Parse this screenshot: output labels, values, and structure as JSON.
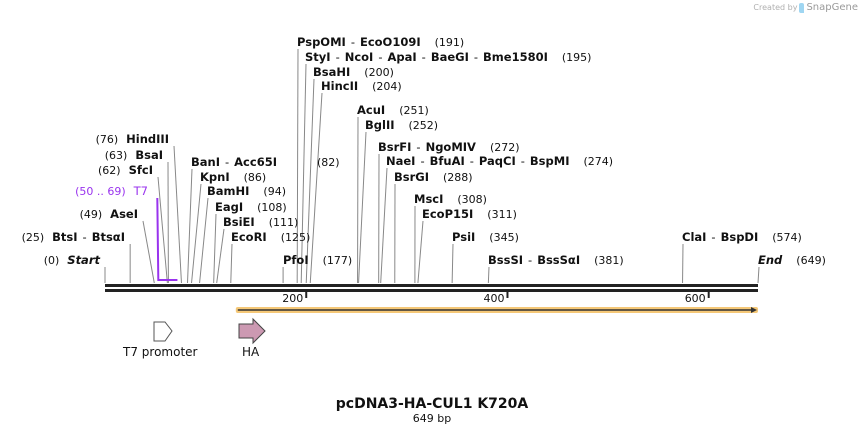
{
  "credit": {
    "prefix": "Created by",
    "brand": "SnapGene"
  },
  "sequence": {
    "name": "pcDNA3-HA-CUL1 K720A",
    "length_label": "649 bp",
    "length": 649
  },
  "ticks": [
    {
      "bp": 200,
      "label": "200"
    },
    {
      "bp": 400,
      "label": "400"
    },
    {
      "bp": 600,
      "label": "600"
    }
  ],
  "sites": [
    {
      "names": [
        "Start"
      ],
      "pos": "(0)",
      "bp": 0,
      "italic": true
    },
    {
      "names": [
        "BtsI",
        "BtsαI"
      ],
      "pos": "(25)",
      "bp": 25
    },
    {
      "names": [
        "AseI"
      ],
      "pos": "(49)",
      "bp": 49
    },
    {
      "names": [
        "SfcI"
      ],
      "pos": "(62)",
      "bp": 62
    },
    {
      "names": [
        "BsaI"
      ],
      "pos": "(63)",
      "bp": 63
    },
    {
      "names": [
        "HindIII"
      ],
      "pos": "(76)",
      "bp": 76
    },
    {
      "names": [
        "BanI",
        "Acc65I"
      ],
      "pos": "(82)",
      "bp": 82
    },
    {
      "names": [
        "KpnI"
      ],
      "pos": "(86)",
      "bp": 86
    },
    {
      "names": [
        "BamHI"
      ],
      "pos": "(94)",
      "bp": 94
    },
    {
      "names": [
        "EagI"
      ],
      "pos": "(108)",
      "bp": 108
    },
    {
      "names": [
        "BsiEI"
      ],
      "pos": "(111)",
      "bp": 111
    },
    {
      "names": [
        "EcoRI"
      ],
      "pos": "(125)",
      "bp": 125
    },
    {
      "names": [
        "PfoI"
      ],
      "pos": "(177)",
      "bp": 177
    },
    {
      "names": [
        "PspOMI",
        "EcoO109I"
      ],
      "pos": "(191)",
      "bp": 191
    },
    {
      "names": [
        "StyI",
        "NcoI",
        "ApaI",
        "BaeGI",
        "Bme1580I"
      ],
      "pos": "(195)",
      "bp": 195
    },
    {
      "names": [
        "BsaHI"
      ],
      "pos": "(200)",
      "bp": 200
    },
    {
      "names": [
        "HincII"
      ],
      "pos": "(204)",
      "bp": 204
    },
    {
      "names": [
        "AcuI"
      ],
      "pos": "(251)",
      "bp": 251
    },
    {
      "names": [
        "BglII"
      ],
      "pos": "(252)",
      "bp": 252
    },
    {
      "names": [
        "BsrFI",
        "NgoMIV"
      ],
      "pos": "(272)",
      "bp": 272
    },
    {
      "names": [
        "NaeI",
        "BfuAI",
        "PaqCI",
        "BspMI"
      ],
      "pos": "(274)",
      "bp": 274
    },
    {
      "names": [
        "BsrGI"
      ],
      "pos": "(288)",
      "bp": 288
    },
    {
      "names": [
        "MscI"
      ],
      "pos": "(308)",
      "bp": 308
    },
    {
      "names": [
        "EcoP15I"
      ],
      "pos": "(311)",
      "bp": 311
    },
    {
      "names": [
        "PsiI"
      ],
      "pos": "(345)",
      "bp": 345
    },
    {
      "names": [
        "BssSI",
        "BssSαI"
      ],
      "pos": "(381)",
      "bp": 381
    },
    {
      "names": [
        "ClaI",
        "BspDI"
      ],
      "pos": "(574)",
      "bp": 574
    },
    {
      "names": [
        "End"
      ],
      "pos": "(649)",
      "bp": 649,
      "italic": true
    }
  ],
  "primer": {
    "name": "T7",
    "range": "(50 .. 69)",
    "start": 50,
    "end": 69,
    "color": "#9933ee"
  },
  "orf": {
    "start": 130,
    "end": 649,
    "color": "#f5c878"
  },
  "features": [
    {
      "name": "T7 promoter",
      "start": 50,
      "end": 69,
      "color": "#ffffff"
    },
    {
      "name": "HA",
      "start": 133,
      "end": 159,
      "color": "#cc99b2"
    }
  ]
}
